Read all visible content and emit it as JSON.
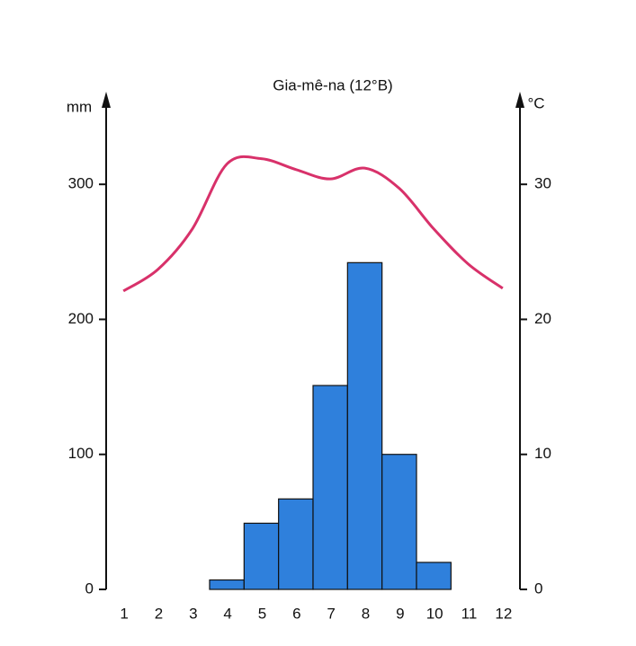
{
  "chart_data": {
    "type": "bar",
    "title": "Gia-mê-na (12°B)",
    "y_label": "mm",
    "y2_label": "°C",
    "categories": [
      "1",
      "2",
      "3",
      "4",
      "5",
      "6",
      "7",
      "8",
      "9",
      "10",
      "11",
      "12"
    ],
    "ylim": [
      0,
      362
    ],
    "yticks": [
      0,
      100,
      200,
      300
    ],
    "y2lim": [
      0,
      36.2
    ],
    "y2ticks": [
      0,
      10,
      20,
      30
    ],
    "series": [
      {
        "type": "bar",
        "color": "#2f80dc",
        "values": [
          0,
          0,
          0,
          7,
          49,
          67,
          151,
          242,
          100,
          20,
          0,
          0
        ]
      },
      {
        "type": "line",
        "axis": "y2",
        "color": "#d8316a",
        "values": [
          22.1,
          23.7,
          26.7,
          31.5,
          31.9,
          31.1,
          30.4,
          31.2,
          29.7,
          26.7,
          24.1,
          22.3
        ]
      }
    ]
  }
}
